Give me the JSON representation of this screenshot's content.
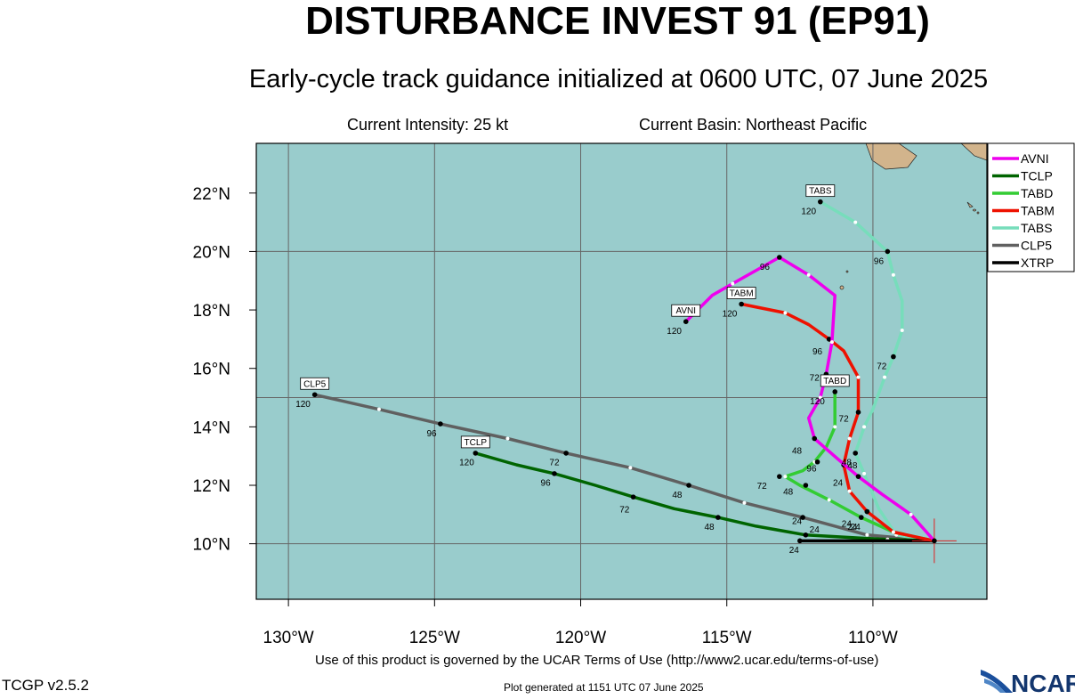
{
  "header": {
    "title": "DISTURBANCE INVEST 91 (EP91)",
    "subtitle": "Early-cycle track guidance initialized at 0600 UTC, 07 June 2025",
    "current_intensity": "Current Intensity: 25 kt",
    "current_basin": "Current Basin: Northeast Pacific"
  },
  "axes": {
    "lon_labels": [
      "130°W",
      "125°W",
      "120°W",
      "115°W",
      "110°W"
    ],
    "lat_labels": [
      "22°N",
      "20°N",
      "18°N",
      "16°N",
      "14°N",
      "12°N",
      "10°N"
    ],
    "lon_values": [
      -130,
      -125,
      -120,
      -115,
      -110
    ],
    "lat_values": [
      22,
      20,
      18,
      16,
      14,
      12,
      10
    ],
    "lon_range": [
      -131.1,
      -106.1
    ],
    "lat_range": [
      8.1,
      23.7
    ]
  },
  "colors": {
    "ocean": "#99cccc",
    "land": "#d2b48c",
    "AVNI": "#ee00ee",
    "TCLP": "#006400",
    "TABD": "#33cc33",
    "TABM": "#ee1100",
    "TABS": "#77ddbb",
    "CLP5": "#606060",
    "XTRP": "#000000"
  },
  "legend": {
    "placement": "right",
    "entries": [
      "AVNI",
      "TCLP",
      "TABD",
      "TABM",
      "TABS",
      "CLP5",
      "XTRP"
    ]
  },
  "init_position": {
    "lon": -107.9,
    "lat": 10.1
  },
  "tracks": [
    {
      "name": "AVNI",
      "end_label": "AVNI",
      "points": [
        [
          -107.9,
          10.1
        ],
        [
          -108.7,
          11.0
        ],
        [
          -109.7,
          11.7
        ],
        [
          -110.5,
          12.3
        ],
        [
          -111.2,
          12.9
        ],
        [
          -112.0,
          13.6
        ],
        [
          -112.2,
          14.3
        ],
        [
          -111.8,
          15.0
        ],
        [
          -111.6,
          15.8
        ],
        [
          -111.4,
          16.9
        ],
        [
          -111.3,
          18.5
        ],
        [
          -112.2,
          19.2
        ],
        [
          -113.2,
          19.8
        ],
        [
          -114.8,
          18.9
        ],
        [
          -115.5,
          18.5
        ],
        [
          -116.4,
          17.6
        ]
      ],
      "tau_labels": [
        [
          "24",
          -111.2,
          12.1
        ],
        [
          "48",
          -112.6,
          13.2
        ],
        [
          "72",
          -112.0,
          15.7
        ],
        [
          "96",
          -113.7,
          19.5
        ],
        [
          "120",
          -116.8,
          17.3
        ]
      ],
      "dots": [
        [
          -110.5,
          12.3
        ],
        [
          -112.0,
          13.6
        ],
        [
          -111.6,
          15.8
        ],
        [
          -113.2,
          19.8
        ],
        [
          -116.4,
          17.6
        ]
      ]
    },
    {
      "name": "TCLP",
      "end_label": "TCLP",
      "points": [
        [
          -107.9,
          10.1
        ],
        [
          -109.5,
          10.15
        ],
        [
          -110.5,
          10.2
        ],
        [
          -112.3,
          10.3
        ],
        [
          -114.0,
          10.6
        ],
        [
          -115.3,
          10.9
        ],
        [
          -116.8,
          11.2
        ],
        [
          -118.2,
          11.6
        ],
        [
          -119.5,
          12.0
        ],
        [
          -120.9,
          12.4
        ],
        [
          -122.2,
          12.7
        ],
        [
          -123.6,
          13.1
        ]
      ],
      "tau_labels": [
        [
          "24",
          -112.6,
          10.8
        ],
        [
          "48",
          -115.6,
          10.6
        ],
        [
          "72",
          -118.5,
          11.2
        ],
        [
          "96",
          -121.2,
          12.1
        ],
        [
          "120",
          -123.9,
          12.8
        ]
      ],
      "dots": [
        [
          -112.3,
          10.3
        ],
        [
          -115.3,
          10.9
        ],
        [
          -118.2,
          11.6
        ],
        [
          -120.9,
          12.4
        ],
        [
          -123.6,
          13.1
        ]
      ]
    },
    {
      "name": "TABD",
      "end_label": "TABD",
      "points": [
        [
          -107.9,
          10.1
        ],
        [
          -109.3,
          10.4
        ],
        [
          -110.4,
          10.9
        ],
        [
          -111.5,
          11.5
        ],
        [
          -112.5,
          12.0
        ],
        [
          -113.0,
          12.3
        ],
        [
          -112.4,
          12.5
        ],
        [
          -112.0,
          12.8
        ],
        [
          -111.6,
          13.3
        ],
        [
          -111.3,
          14.0
        ],
        [
          -111.3,
          15.2
        ]
      ],
      "tau_labels": [
        [
          "24",
          -110.9,
          10.7
        ],
        [
          "48",
          -112.9,
          11.8
        ],
        [
          "72",
          -113.8,
          12.0
        ],
        [
          "96",
          -112.1,
          12.6
        ],
        [
          "120",
          -111.9,
          14.9
        ]
      ],
      "dots": [
        [
          -110.4,
          10.9
        ],
        [
          -112.3,
          12.0
        ],
        [
          -113.2,
          12.3
        ],
        [
          -111.9,
          12.8
        ],
        [
          -111.3,
          15.2
        ]
      ]
    },
    {
      "name": "TABM",
      "end_label": "TABM",
      "points": [
        [
          -107.9,
          10.1
        ],
        [
          -109.3,
          10.4
        ],
        [
          -110.2,
          11.1
        ],
        [
          -110.8,
          11.8
        ],
        [
          -111.0,
          12.7
        ],
        [
          -110.8,
          13.6
        ],
        [
          -110.5,
          14.5
        ],
        [
          -110.5,
          15.7
        ],
        [
          -111.0,
          16.6
        ],
        [
          -111.5,
          17.0
        ],
        [
          -112.2,
          17.5
        ],
        [
          -113.0,
          17.9
        ],
        [
          -114.5,
          18.2
        ]
      ],
      "tau_labels": [
        [
          "24",
          -110.7,
          10.6
        ],
        [
          "48",
          -110.7,
          12.7
        ],
        [
          "72",
          -111.0,
          14.3
        ],
        [
          "96",
          -111.9,
          16.6
        ],
        [
          "120",
          -114.9,
          17.9
        ]
      ],
      "dots": [
        [
          -110.2,
          11.1
        ],
        [
          -111.0,
          12.7
        ],
        [
          -110.5,
          14.5
        ],
        [
          -111.5,
          17.0
        ],
        [
          -114.5,
          18.2
        ]
      ]
    },
    {
      "name": "TABS",
      "end_label": "TABS",
      "points": [
        [
          -107.9,
          10.1
        ],
        [
          -109.2,
          10.3
        ],
        [
          -109.8,
          11.2
        ],
        [
          -110.3,
          12.4
        ],
        [
          -110.6,
          13.1
        ],
        [
          -110.3,
          14.0
        ],
        [
          -110.0,
          14.6
        ],
        [
          -109.6,
          15.7
        ],
        [
          -109.3,
          16.4
        ],
        [
          -109.0,
          17.3
        ],
        [
          -109.0,
          18.3
        ],
        [
          -109.3,
          19.2
        ],
        [
          -109.5,
          20.0
        ],
        [
          -110.6,
          21.0
        ],
        [
          -111.8,
          21.7
        ]
      ],
      "tau_labels": [
        [
          "24",
          -110.6,
          10.6
        ],
        [
          "48",
          -110.9,
          12.8
        ],
        [
          "72",
          -109.7,
          16.1
        ],
        [
          "96",
          -109.8,
          19.7
        ],
        [
          "120",
          -112.2,
          21.4
        ]
      ],
      "dots": [
        [
          -110.2,
          11.1
        ],
        [
          -110.6,
          13.1
        ],
        [
          -109.3,
          16.4
        ],
        [
          -109.5,
          20.0
        ],
        [
          -111.8,
          21.7
        ]
      ]
    },
    {
      "name": "CLP5",
      "end_label": "CLP5",
      "points": [
        [
          -107.9,
          10.1
        ],
        [
          -110.2,
          10.3
        ],
        [
          -112.4,
          10.9
        ],
        [
          -114.4,
          11.4
        ],
        [
          -116.3,
          12.0
        ],
        [
          -118.3,
          12.6
        ],
        [
          -120.5,
          13.1
        ],
        [
          -122.5,
          13.6
        ],
        [
          -124.8,
          14.1
        ],
        [
          -126.9,
          14.6
        ],
        [
          -129.1,
          15.1
        ]
      ],
      "tau_labels": [
        [
          "24",
          -112.0,
          10.5
        ],
        [
          "48",
          -116.7,
          11.7
        ],
        [
          "72",
          -120.9,
          12.8
        ],
        [
          "96",
          -125.1,
          13.8
        ],
        [
          "120",
          -129.5,
          14.8
        ]
      ],
      "dots": [
        [
          -112.4,
          10.9
        ],
        [
          -116.3,
          12.0
        ],
        [
          -120.5,
          13.1
        ],
        [
          -124.8,
          14.1
        ],
        [
          -129.1,
          15.1
        ]
      ]
    },
    {
      "name": "XTRP",
      "end_label": "",
      "points": [
        [
          -107.9,
          10.1
        ],
        [
          -112.5,
          10.1
        ]
      ],
      "tau_labels": [
        [
          "24",
          -112.7,
          9.8
        ]
      ],
      "dots": [
        [
          -112.5,
          10.1
        ]
      ]
    }
  ],
  "footer": {
    "terms": "Use of this product is governed by the UCAR Terms of Use (http://www2.ucar.edu/terms-of-use)",
    "version": "TCGP v2.5.2",
    "generated": "Plot generated at 1151 UTC   07 June 2025",
    "logo_text": "NCAR"
  }
}
